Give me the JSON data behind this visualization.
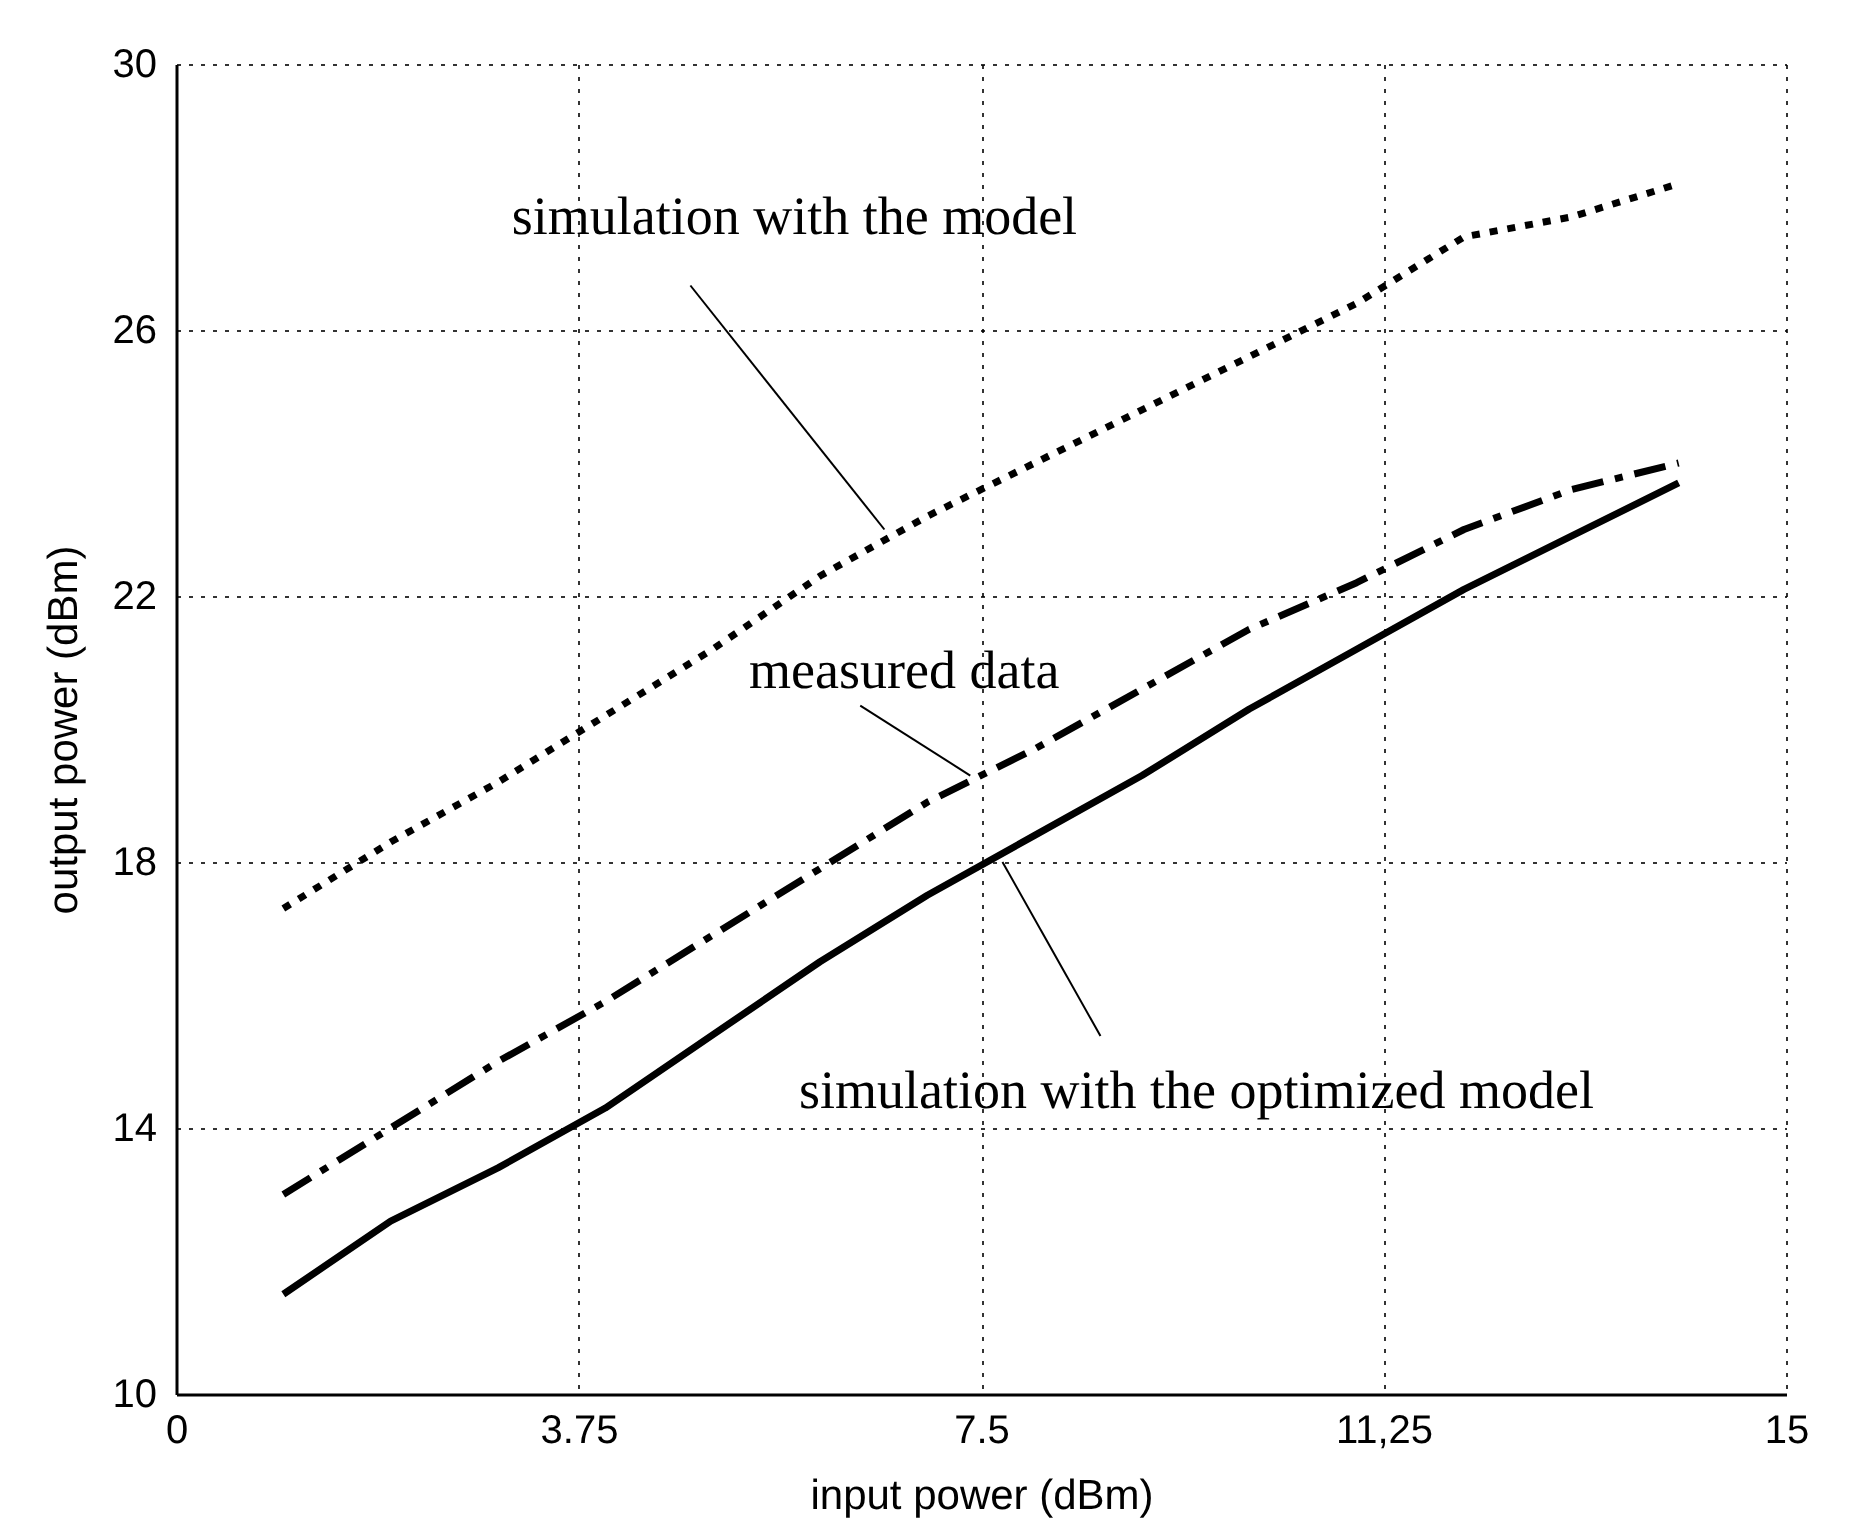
{
  "chart_data": {
    "type": "line",
    "xlabel": "input power (dBm)",
    "ylabel": "output power (dBm)",
    "xlim": [
      0,
      15
    ],
    "xticks": [
      0,
      3.75,
      7.5,
      {
        "value": 11.25,
        "label": "11,25"
      },
      15
    ],
    "ylim": [
      10,
      30
    ],
    "yticks": [
      10,
      14,
      18,
      22,
      26,
      30
    ],
    "grid": true,
    "series": [
      {
        "color": "#000000",
        "line_style": "dotted",
        "x": [
          1,
          2,
          3,
          4,
          5,
          6,
          7,
          8,
          9,
          10,
          11,
          12,
          13,
          14
        ],
        "values": [
          17.3,
          18.3,
          19.2,
          20.2,
          21.2,
          22.3,
          23.2,
          24.0,
          24.8,
          25.6,
          26.4,
          27.4,
          27.7,
          28.2
        ]
      },
      {
        "color": "#000000",
        "line_style": "dashdot",
        "x": [
          1,
          2,
          3,
          4,
          5,
          6,
          7,
          8,
          9,
          10,
          11,
          12,
          13,
          14
        ],
        "values": [
          13.0,
          14.0,
          15.0,
          15.9,
          16.9,
          17.9,
          18.9,
          19.7,
          20.6,
          21.5,
          22.2,
          23.0,
          23.6,
          24.0
        ]
      },
      {
        "color": "#000000",
        "line_style": "solid",
        "x": [
          1,
          2,
          3,
          4,
          5,
          6,
          7,
          8,
          9,
          10,
          11,
          12,
          13,
          14
        ],
        "values": [
          11.5,
          12.6,
          13.4,
          14.3,
          15.4,
          16.5,
          17.5,
          18.4,
          19.3,
          20.3,
          21.2,
          22.1,
          22.9,
          23.7
        ]
      }
    ],
    "annotations": [
      {
        "text": "simulation with the model",
        "x": 6.6,
        "y": 23.0
      },
      {
        "text": "measured data",
        "x": 7.4,
        "y": 19.3
      },
      {
        "text": "simulation with the optimized model",
        "x": 7.7,
        "y": 18.0
      }
    ]
  }
}
